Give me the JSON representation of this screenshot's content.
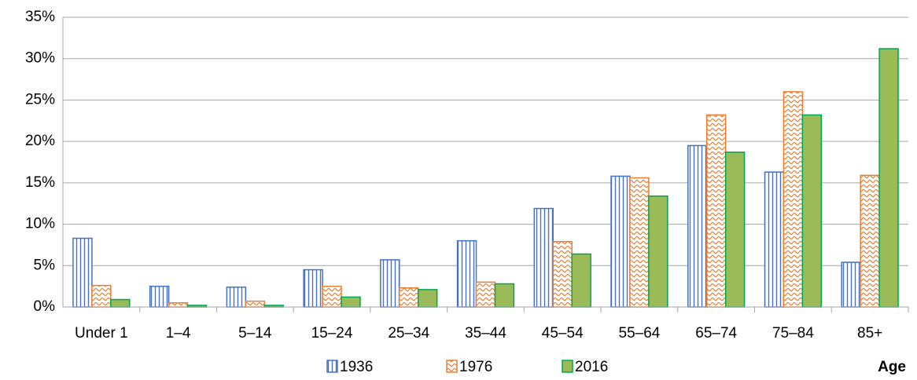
{
  "chart_data": {
    "type": "bar",
    "x_label": "Age",
    "categories": [
      "Under 1",
      "1–4",
      "5–14",
      "15–24",
      "25–34",
      "35–44",
      "45–54",
      "55–64",
      "65–74",
      "75–84",
      "85+"
    ],
    "series": [
      {
        "name": "1936",
        "color": "#4472c4",
        "pattern": "vertical-stripes",
        "values": [
          8.3,
          2.5,
          2.4,
          4.5,
          5.7,
          8.0,
          11.9,
          15.8,
          19.5,
          16.3,
          5.4
        ]
      },
      {
        "name": "1976",
        "color": "#ed7d31",
        "pattern": "waves",
        "values": [
          2.6,
          0.5,
          0.7,
          2.5,
          2.3,
          3.0,
          7.9,
          15.6,
          23.2,
          26.0,
          15.9
        ]
      },
      {
        "name": "2016",
        "color": "#9bbb59",
        "pattern": "solid",
        "values": [
          0.9,
          0.2,
          0.2,
          1.2,
          2.1,
          2.8,
          6.4,
          13.4,
          18.7,
          23.2,
          31.2
        ]
      }
    ],
    "ylim": [
      0,
      35
    ],
    "yticks": [
      {
        "value": 0,
        "label": "0%"
      },
      {
        "value": 5,
        "label": "5%"
      },
      {
        "value": 10,
        "label": "10%"
      },
      {
        "value": 15,
        "label": "15%"
      },
      {
        "value": 20,
        "label": "20%"
      },
      {
        "value": 25,
        "label": "25%"
      },
      {
        "value": 30,
        "label": "30%"
      },
      {
        "value": 35,
        "label": "35%"
      }
    ],
    "grid": true,
    "legend": "bottom"
  }
}
